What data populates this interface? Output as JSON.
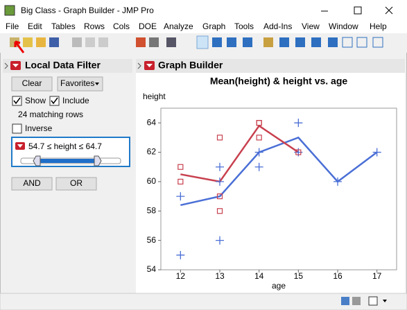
{
  "window": {
    "title": "Big Class - Graph Builder - JMP Pro"
  },
  "menu": [
    "File",
    "Edit",
    "Tables",
    "Rows",
    "Cols",
    "DOE",
    "Analyze",
    "Graph",
    "Tools",
    "Add-Ins",
    "View",
    "Window",
    "Help"
  ],
  "data_filter": {
    "header": "Local Data Filter",
    "clear": "Clear",
    "favorites": "Favorites",
    "show": "Show",
    "include": "Include",
    "matching": "24 matching rows",
    "inverse": "Inverse",
    "condition": "54.7 ≤ height ≤ 64.7",
    "and": "AND",
    "or": "OR"
  },
  "graph_builder": {
    "header": "Graph Builder"
  },
  "chart_data": {
    "type": "line",
    "title": "Mean(height) & height vs. age",
    "xlabel": "age",
    "ylabel": "height",
    "x": [
      12,
      13,
      14,
      15,
      16,
      17
    ],
    "series": [
      {
        "color": "#4a6fd6",
        "values": [
          58.4,
          59,
          62,
          63,
          60,
          62
        ]
      },
      {
        "color": "#c8404e",
        "values": [
          60.5,
          60,
          63.8,
          62,
          null,
          null
        ]
      }
    ],
    "points": [
      {
        "color": "#4a6fd6",
        "marker": "plus",
        "x": [
          12,
          12,
          13,
          13,
          13,
          14,
          14,
          15,
          15,
          16,
          17
        ],
        "y": [
          59,
          55,
          56,
          61,
          60,
          62,
          61,
          64,
          62,
          60,
          62
        ]
      },
      {
        "color": "#c8404e",
        "marker": "square",
        "x": [
          12,
          12,
          13,
          13,
          13,
          14,
          14,
          14,
          15
        ],
        "y": [
          61,
          60,
          63,
          59,
          58,
          64,
          64,
          63,
          62
        ]
      }
    ],
    "xlim": [
      11.5,
      17.5
    ],
    "ylim": [
      54,
      65
    ],
    "xticks": [
      12,
      13,
      14,
      15,
      16,
      17
    ],
    "yticks": [
      54,
      56,
      58,
      60,
      62,
      64
    ]
  }
}
